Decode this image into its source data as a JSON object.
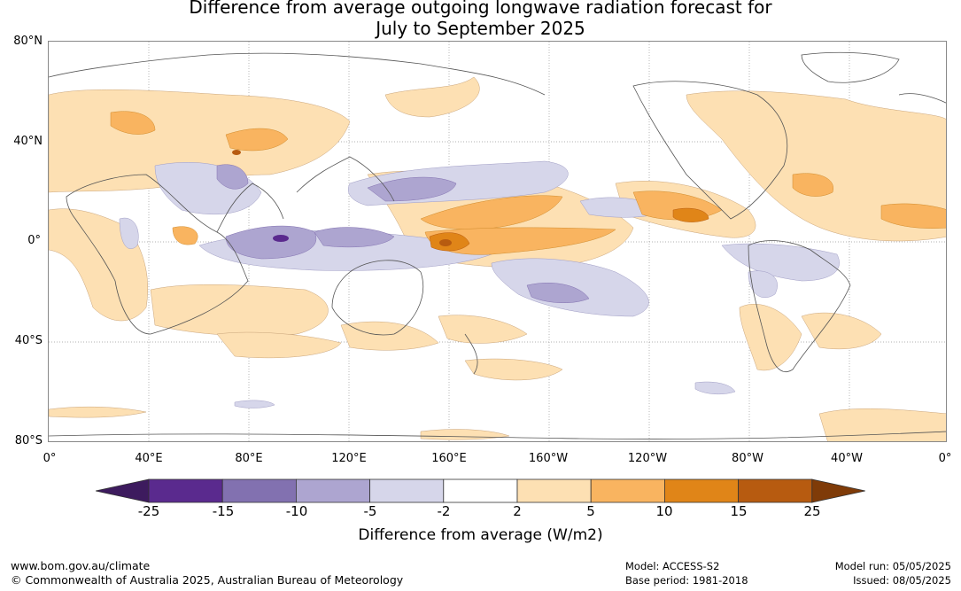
{
  "title_line1": "Difference from average outgoing longwave radiation forecast for",
  "title_line2": "July to September 2025",
  "lat_labels": [
    "80°N",
    "40°N",
    "0°",
    "40°S",
    "80°S"
  ],
  "lon_labels": [
    "0°",
    "40°E",
    "80°E",
    "120°E",
    "160°E",
    "160°W",
    "120°W",
    "80°W",
    "40°W",
    "0°"
  ],
  "colorbar": {
    "ticks": [
      "-25",
      "-15",
      "-10",
      "-5",
      "-2",
      "2",
      "5",
      "10",
      "15",
      "25"
    ],
    "colors": [
      "#3d1b5e",
      "#5a2a8e",
      "#8271b0",
      "#ada5d0",
      "#d6d6ea",
      "#ffffff",
      "#fde0b3",
      "#f9b460",
      "#e08518",
      "#b75b10",
      "#7f3b08"
    ],
    "label": "Difference from average (W/m2)"
  },
  "footer": {
    "website": "www.bom.gov.au/climate",
    "copyright": "© Commonwealth of Australia 2025, Australian Bureau of Meteorology",
    "model": "Model: ACCESS-S2",
    "base_period": "Base period: 1981-2018",
    "model_run": "Model run: 05/05/2025",
    "issued": "Issued: 08/05/2025"
  }
}
